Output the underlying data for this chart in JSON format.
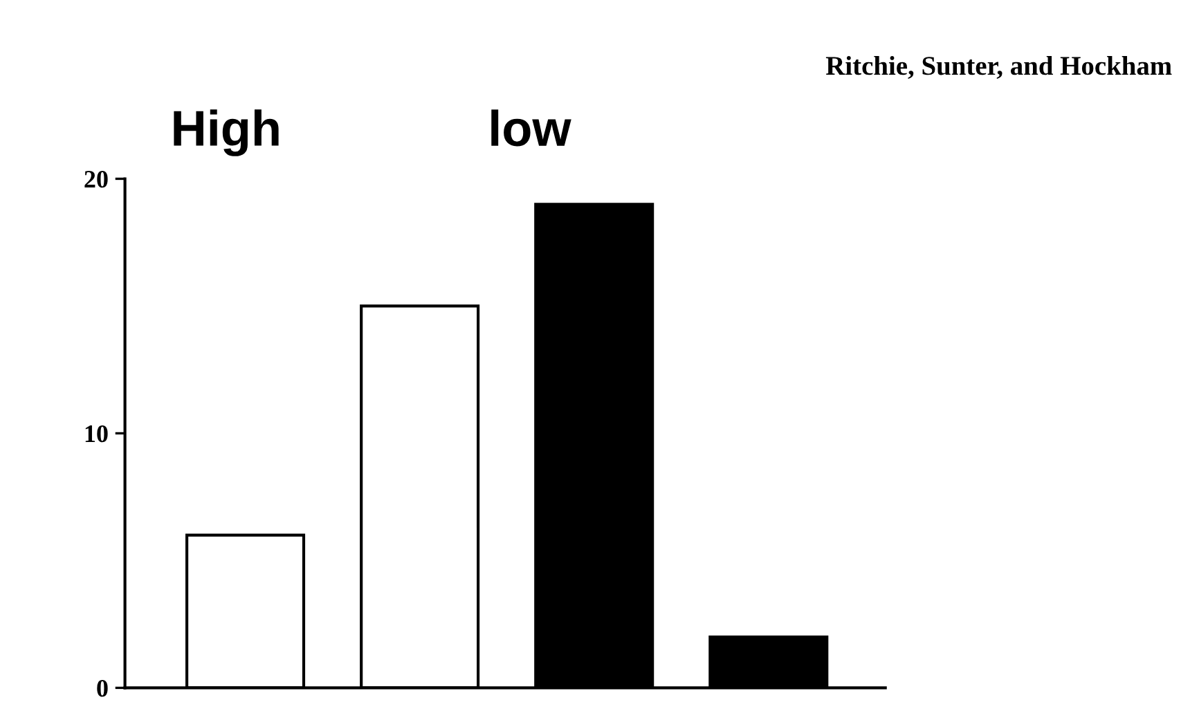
{
  "chart_data": {
    "type": "bar",
    "categories": [
      null,
      null,
      null,
      null
    ],
    "values": [
      6,
      15,
      19,
      2
    ],
    "colors": [
      "#ffffff",
      "#ffffff",
      "#000000",
      "#000000"
    ],
    "ylim": [
      0,
      20
    ],
    "yticks": [
      0,
      10,
      20
    ],
    "tick_labels": "y",
    "grid": false,
    "legend": false,
    "annotations": [
      "Ritchie, Sunter, and Hockham",
      "High",
      "low"
    ]
  }
}
